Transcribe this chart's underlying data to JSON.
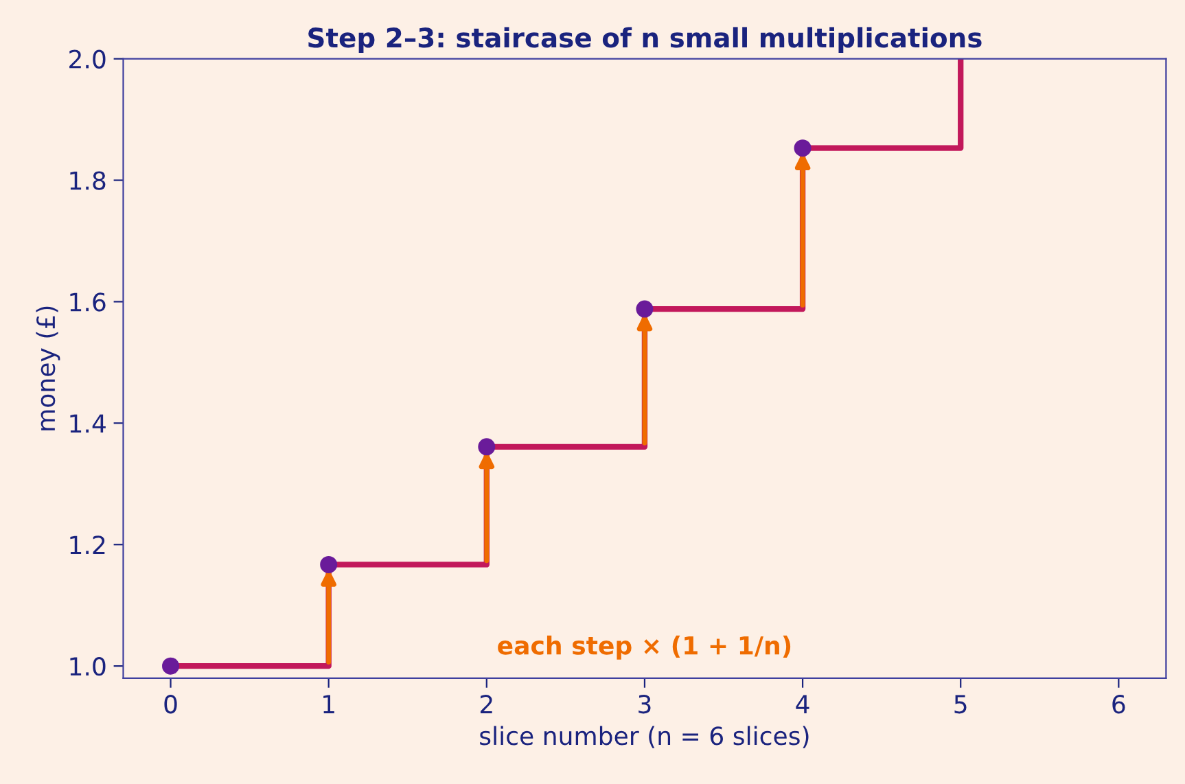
{
  "chart_data": {
    "type": "step",
    "title": "Step 2–3: staircase of n small multiplications",
    "xlabel": "slice number (n = 6 slices)",
    "ylabel": "money (£)",
    "x": [
      0,
      1,
      2,
      3,
      4,
      5
    ],
    "series": [
      {
        "color": "#c2185b",
        "values": [
          1.0,
          1.167,
          1.361,
          1.588,
          1.853,
          2.0
        ]
      },
      {
        "type": "scatter",
        "marker": "circle",
        "color": "#6a1b9a",
        "x": [
          0,
          1,
          2,
          3,
          4
        ],
        "values": [
          1.0,
          1.167,
          1.361,
          1.588,
          1.853
        ]
      }
    ],
    "xlim": [
      -0.3,
      6.3
    ],
    "ylim": [
      0.98,
      2.0
    ],
    "xticks": [
      0,
      1,
      2,
      3,
      4,
      5,
      6
    ],
    "yticks": [
      {
        "value": 1,
        "label": "1.0"
      },
      1.2,
      1.4,
      1.6,
      1.8,
      {
        "value": 2,
        "label": "2.0"
      }
    ],
    "annotations": [
      "each step × (1 + 1/n)"
    ],
    "grid": false,
    "legend": false
  }
}
